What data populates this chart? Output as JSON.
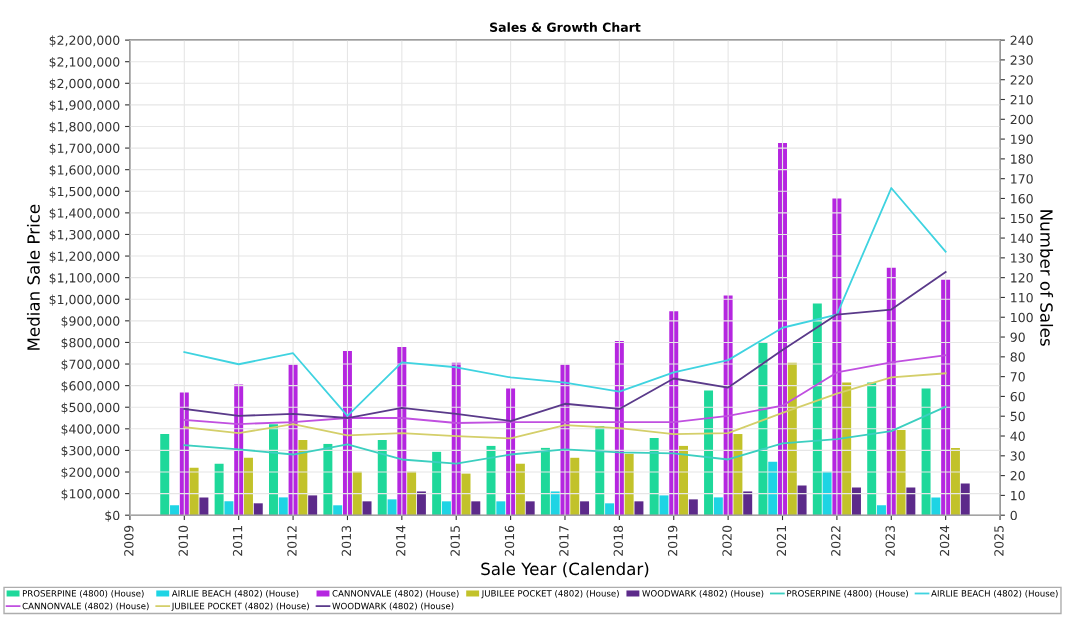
{
  "chart_data": {
    "type": "bar",
    "title": "Sales & Growth Chart",
    "xlabel": "Sale Year (Calendar)",
    "ylabel": "Median Sale Price",
    "y2label": "Number of Sales",
    "x": [
      2010,
      2011,
      2012,
      2013,
      2014,
      2015,
      2016,
      2017,
      2018,
      2019,
      2020,
      2021,
      2022,
      2023,
      2024
    ],
    "xlim": [
      2009,
      2025
    ],
    "xticks": [
      2009,
      2010,
      2011,
      2012,
      2013,
      2014,
      2015,
      2016,
      2017,
      2018,
      2019,
      2020,
      2021,
      2022,
      2023,
      2024,
      2025
    ],
    "ylim": [
      0,
      2200000
    ],
    "yticks": [
      {
        "value": 0,
        "label": "$0"
      },
      {
        "value": 100000,
        "label": "$100,000"
      },
      {
        "value": 200000,
        "label": "$200,000"
      },
      {
        "value": 300000,
        "label": "$300,000"
      },
      {
        "value": 400000,
        "label": "$400,000"
      },
      {
        "value": 500000,
        "label": "$500,000"
      },
      {
        "value": 600000,
        "label": "$600,000"
      },
      {
        "value": 700000,
        "label": "$700,000"
      },
      {
        "value": 800000,
        "label": "$800,000"
      },
      {
        "value": 900000,
        "label": "$900,000"
      },
      {
        "value": 1000000,
        "label": "$1,000,000"
      },
      {
        "value": 1100000,
        "label": "$1,100,000"
      },
      {
        "value": 1200000,
        "label": "$1,200,000"
      },
      {
        "value": 1300000,
        "label": "$1,300,000"
      },
      {
        "value": 1400000,
        "label": "$1,400,000"
      },
      {
        "value": 1500000,
        "label": "$1,500,000"
      },
      {
        "value": 1600000,
        "label": "$1,600,000"
      },
      {
        "value": 1700000,
        "label": "$1,700,000"
      },
      {
        "value": 1800000,
        "label": "$1,800,000"
      },
      {
        "value": 1900000,
        "label": "$1,900,000"
      },
      {
        "value": 2000000,
        "label": "$2,000,000"
      },
      {
        "value": 2100000,
        "label": "$2,100,000"
      },
      {
        "value": 2200000,
        "label": "$2,200,000"
      }
    ],
    "y2lim": [
      0,
      240
    ],
    "y2ticks": [
      0,
      10,
      20,
      30,
      40,
      50,
      60,
      70,
      80,
      90,
      100,
      110,
      120,
      130,
      140,
      150,
      160,
      170,
      180,
      190,
      200,
      210,
      220,
      230,
      240
    ],
    "grid": true,
    "legend": "bottom",
    "series": [
      {
        "name": "PROSERPINE (4800) (House)",
        "axis": "y2",
        "color": "#1ed89a",
        "values": [
          41,
          26,
          46,
          36,
          38,
          32,
          35,
          34,
          45,
          39,
          63,
          87,
          107,
          67,
          64
        ]
      },
      {
        "name": "AIRLIE BEACH (4802) (House)",
        "axis": "y2",
        "color": "#1ed4e4",
        "values": [
          5,
          7,
          9,
          5,
          8,
          7,
          7,
          12,
          6,
          10,
          9,
          27,
          22,
          5,
          9
        ]
      },
      {
        "name": "CANNONVALE (4802) (House)",
        "axis": "y2",
        "color": "#b526e0",
        "values": [
          62,
          66,
          76,
          83,
          85,
          77,
          64,
          76,
          88,
          103,
          111,
          188,
          160,
          125,
          119
        ]
      },
      {
        "name": "JUBILEE POCKET (4802) (House)",
        "axis": "y2",
        "color": "#c2c22a",
        "values": [
          24,
          29,
          38,
          22,
          22,
          21,
          26,
          29,
          31,
          35,
          41,
          77,
          67,
          43,
          34
        ]
      },
      {
        "name": "WOODWARK (4802) (House)",
        "axis": "y2",
        "color": "#5c2a8a",
        "values": [
          9,
          6,
          10,
          7,
          12,
          7,
          7,
          7,
          7,
          8,
          12,
          15,
          14,
          14,
          16
        ]
      },
      {
        "name": "PROSERPINE (4800) (House)",
        "type": "line",
        "color": "#3ccfc0",
        "values": [
          324000,
          305000,
          281000,
          328000,
          258000,
          239000,
          281000,
          305000,
          291000,
          286000,
          258000,
          333000,
          352000,
          389000,
          502000
        ]
      },
      {
        "name": "AIRLIE BEACH (4802) (House)",
        "type": "line",
        "color": "#3fd3e0",
        "values": [
          755000,
          699000,
          750000,
          460000,
          708000,
          685000,
          638000,
          614000,
          572000,
          661000,
          718000,
          868000,
          929000,
          1515000,
          1220000
        ]
      },
      {
        "name": "CANNONVALE (4802) (House)",
        "type": "line",
        "color": "#c050e0",
        "values": [
          441000,
          422000,
          431000,
          450000,
          450000,
          427000,
          431000,
          431000,
          431000,
          431000,
          460000,
          507000,
          661000,
          708000,
          741000
        ]
      },
      {
        "name": "JUBILEE POCKET (4802) (House)",
        "type": "line",
        "color": "#d4cf6a",
        "values": [
          408000,
          380000,
          422000,
          370000,
          380000,
          366000,
          356000,
          417000,
          403000,
          375000,
          380000,
          474000,
          563000,
          638000,
          657000
        ]
      },
      {
        "name": "WOODWARK (4802) (House)",
        "type": "line",
        "color": "#5a3a8a",
        "values": [
          492000,
          460000,
          469000,
          450000,
          497000,
          469000,
          436000,
          516000,
          492000,
          633000,
          591000,
          765000,
          929000,
          952000,
          1126000
        ]
      }
    ]
  }
}
